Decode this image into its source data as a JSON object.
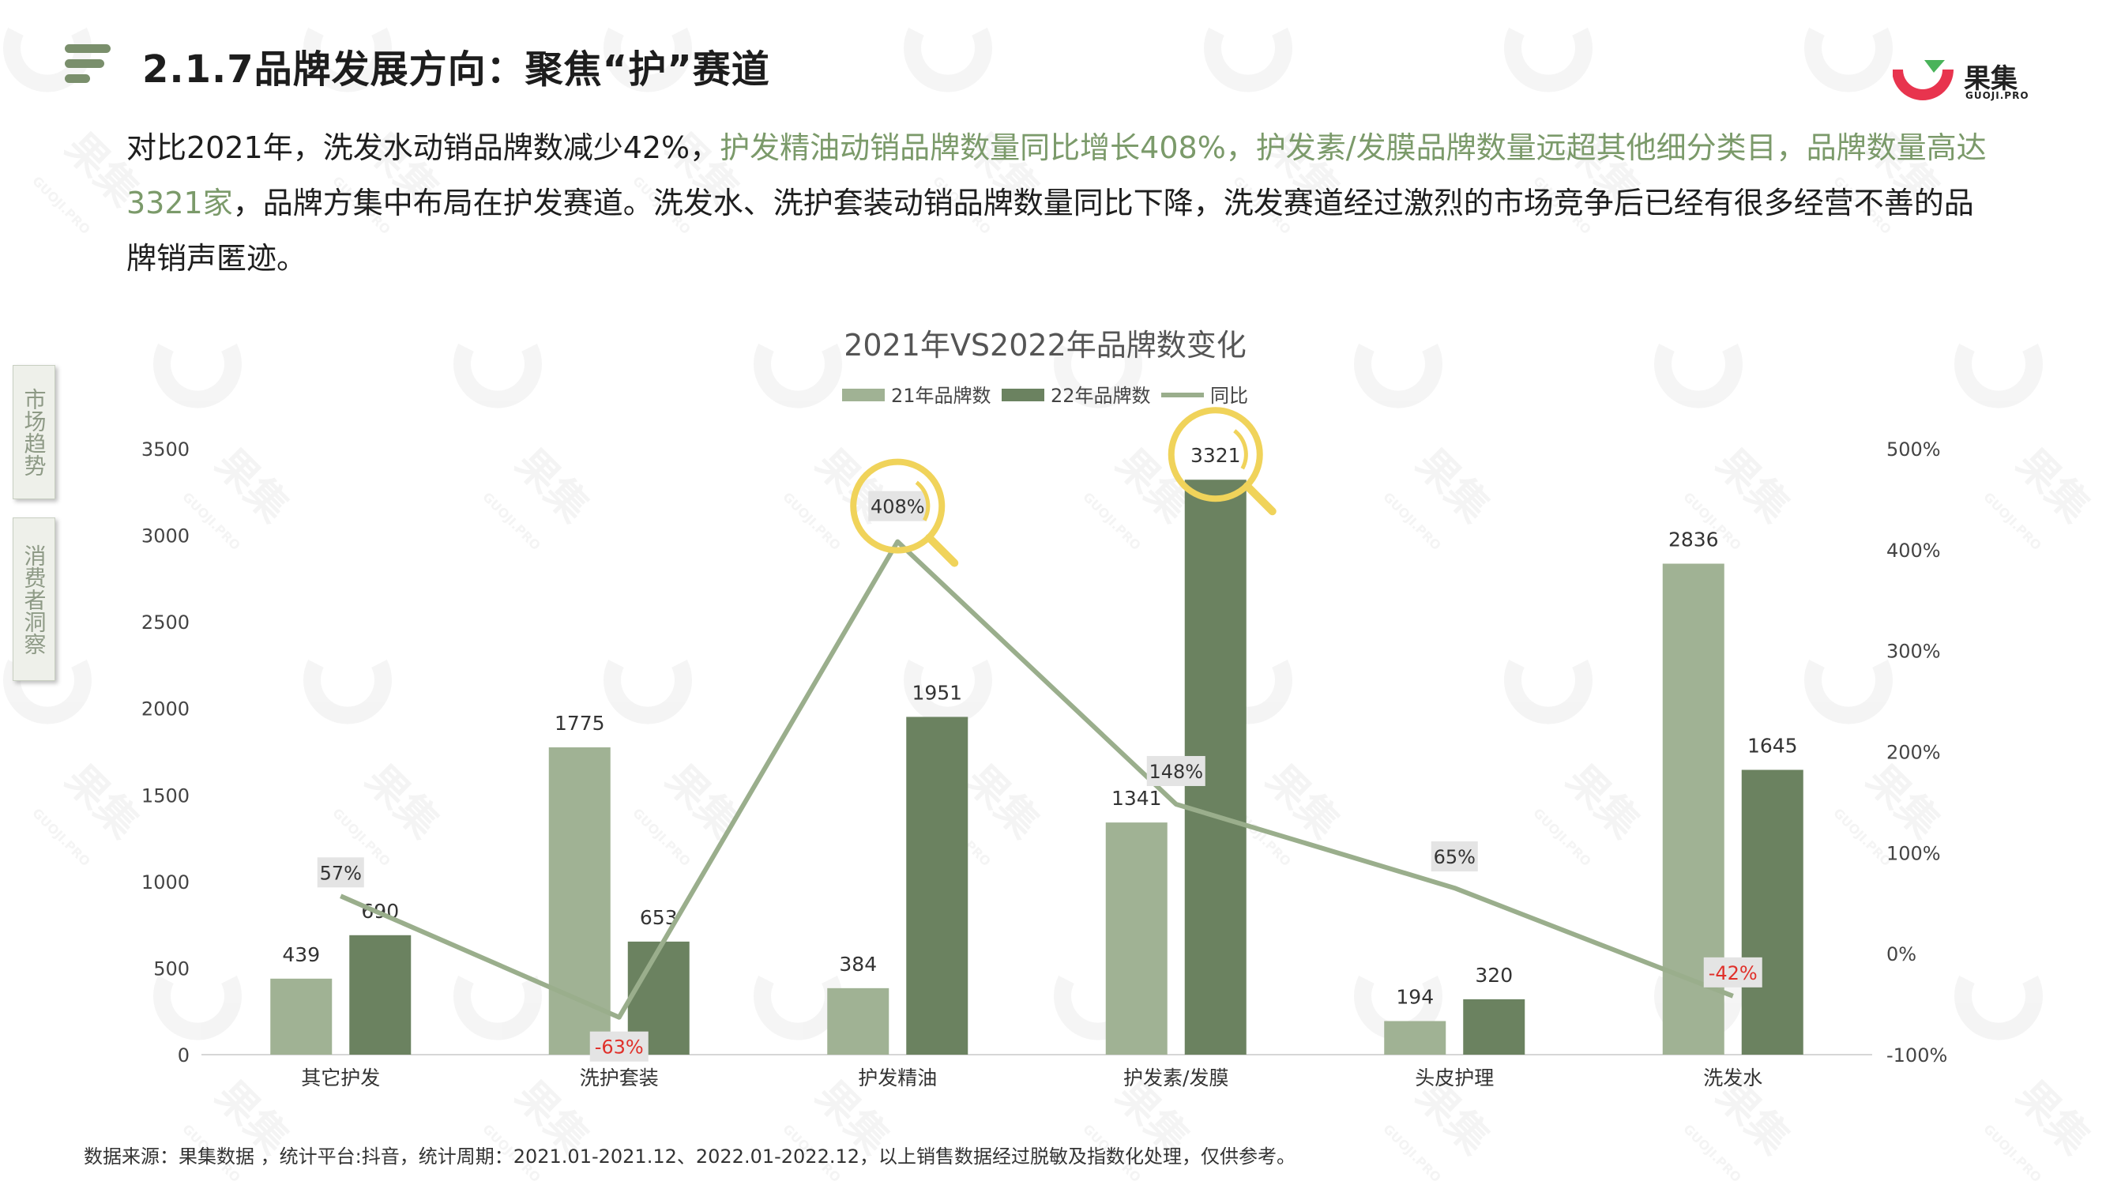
{
  "header": {
    "title": "2.1.7品牌发展方向：聚焦“护”赛道",
    "logo_text": "果集",
    "logo_sub": "GUOJI.PRO"
  },
  "summary": {
    "part1": "对比2021年，洗发水动销品牌数减少42%，",
    "part2": "护发精油动销品牌数量同比增长408%，护发素/发膜品牌数量远超其他细分类目，品牌数量高达3321家",
    "part3": "，品牌方集中布局在护发赛道。洗发水、洗护套装动销品牌数量同比下降，洗发赛道经过激烈的市场竞争后已经有很多经营不善的品牌销声匿迹。"
  },
  "side_tabs": [
    {
      "label": "市场趋势"
    },
    {
      "label": "消费者洞察"
    }
  ],
  "watermark": {
    "text": "果集",
    "sub": "GUOJI.PRO"
  },
  "colors": {
    "bar21": "#a0b294",
    "bar22": "#6b8260",
    "line": "#9aae8c",
    "highlight": "#f0d35a",
    "negative": "#e0302a",
    "accent_text": "#7b9a6a"
  },
  "chart_data": {
    "type": "bar",
    "title": "2021年VS2022年品牌数变化",
    "categories": [
      "其它护发",
      "洗护套装",
      "护发精油",
      "护发素/发膜",
      "头皮护理",
      "洗发水"
    ],
    "series": [
      {
        "name": "21年品牌数",
        "type": "bar",
        "axis": "left",
        "values": [
          439,
          1775,
          384,
          1341,
          194,
          2836
        ]
      },
      {
        "name": "22年品牌数",
        "type": "bar",
        "axis": "left",
        "values": [
          690,
          653,
          1951,
          3321,
          320,
          1645
        ]
      },
      {
        "name": "同比",
        "type": "line",
        "axis": "right",
        "values": [
          57,
          -63,
          408,
          148,
          65,
          -42
        ],
        "labels": [
          "57%",
          "-63%",
          "408%",
          "148%",
          "65%",
          "-42%"
        ]
      }
    ],
    "ylim_left": [
      0,
      3500
    ],
    "yticks_left": [
      "0",
      "500",
      "1000",
      "1500",
      "2000",
      "2500",
      "3000",
      "3500"
    ],
    "ylim_right": [
      -100,
      500
    ],
    "yticks_right": [
      "-100%",
      "0%",
      "100%",
      "200%",
      "300%",
      "400%",
      "500%"
    ],
    "highlighted": [
      "408%",
      "3321"
    ],
    "legend_position": "top-center",
    "grid": false
  },
  "footnote": "数据来源：果集数据 ，统计平台:抖音，统计周期：2021.01-2021.12、2022.01-2022.12，以上销售数据经过脱敏及指数化处理，仅供参考。"
}
